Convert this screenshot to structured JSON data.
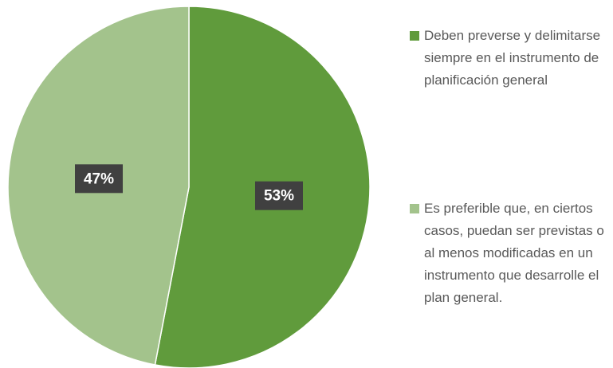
{
  "chart_data": {
    "type": "pie",
    "categories": [
      "Deben preverse y delimitarse siempre en el instrumento de planificación general",
      "Es preferible que, en ciertos casos, puedan ser previstas o al menos modificadas en un instrumento que desarrolle el plan general."
    ],
    "values": [
      53,
      47
    ],
    "value_labels": [
      "53%",
      "47%"
    ],
    "colors": [
      "#609b3c",
      "#a3c38c"
    ],
    "legend": "right"
  }
}
